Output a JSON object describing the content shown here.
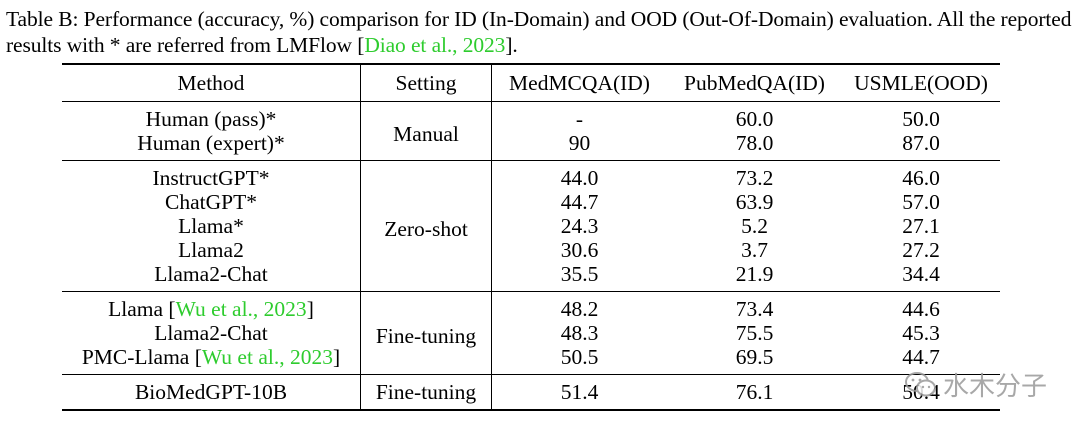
{
  "caption": {
    "main": "Table B: Performance (accuracy, %) comparison for ID (In-Domain) and OOD (Out-Of-Domain) evaluation. All the reported results with * are referred from LMFlow [",
    "cite": "Diao et al., 2023",
    "end": "]."
  },
  "headers": {
    "method": "Method",
    "setting": "Setting",
    "medmcqa": "MedMCQA(ID)",
    "pubmedqa": "PubMedQA(ID)",
    "usmle": "USMLE(OOD)"
  },
  "groups": [
    {
      "setting": "Manual",
      "rows": [
        {
          "method": "Human (pass)*",
          "medmcqa": "-",
          "pubmedqa": "60.0",
          "usmle": "50.0"
        },
        {
          "method": "Human (expert)*",
          "medmcqa": "90",
          "pubmedqa": "78.0",
          "usmle": "87.0"
        }
      ]
    },
    {
      "setting": "Zero-shot",
      "rows": [
        {
          "method": "InstructGPT*",
          "medmcqa": "44.0",
          "pubmedqa": "73.2",
          "usmle": "46.0"
        },
        {
          "method": "ChatGPT*",
          "medmcqa": "44.7",
          "pubmedqa": "63.9",
          "usmle": "57.0"
        },
        {
          "method": "Llama*",
          "medmcqa": "24.3",
          "pubmedqa": "5.2",
          "usmle": "27.1"
        },
        {
          "method": "Llama2",
          "medmcqa": "30.6",
          "pubmedqa": "3.7",
          "usmle": "27.2"
        },
        {
          "method": "Llama2-Chat",
          "medmcqa": "35.5",
          "pubmedqa": "21.9",
          "usmle": "34.4"
        }
      ]
    },
    {
      "setting": "Fine-tuning",
      "rows": [
        {
          "method_pre": "Llama [",
          "method_cite": "Wu et al., 2023",
          "method_post": "]",
          "medmcqa": "48.2",
          "pubmedqa": "73.4",
          "usmle": "44.6"
        },
        {
          "method": "Llama2-Chat",
          "medmcqa": "48.3",
          "pubmedqa": "75.5",
          "usmle": "45.3"
        },
        {
          "method_pre": "PMC-Llama [",
          "method_cite": "Wu et al., 2023",
          "method_post": "]",
          "medmcqa": "50.5",
          "pubmedqa": "69.5",
          "usmle": "44.7"
        }
      ]
    },
    {
      "setting": "Fine-tuning",
      "rows": [
        {
          "method": "BioMedGPT-10B",
          "medmcqa": "51.4",
          "pubmedqa": "76.1",
          "usmle": "50.4",
          "bold": true
        }
      ]
    }
  ],
  "watermark": {
    "text": "水木分子",
    "icon": "wechat-icon"
  },
  "colors": {
    "cite": "#2ecc2e",
    "watermark": "#9a9a9a"
  }
}
